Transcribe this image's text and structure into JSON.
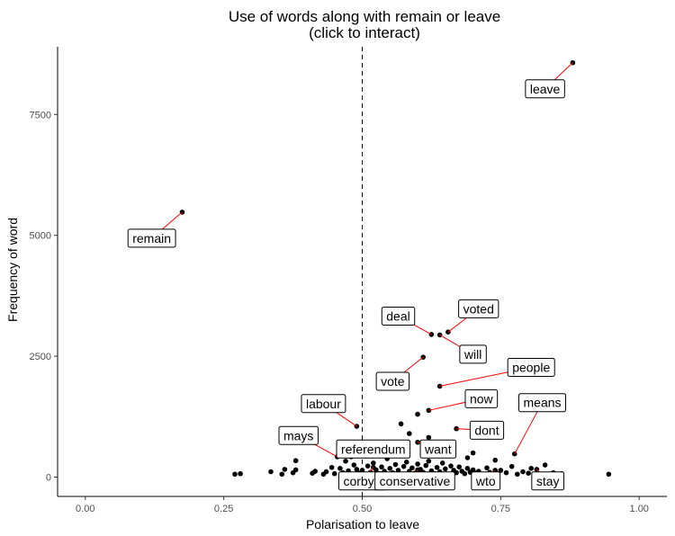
{
  "chart_data": {
    "type": "scatter",
    "title": "Use of words along with remain or leave",
    "subtitle": "(click to interact)",
    "xlabel": "Polarisation to leave",
    "ylabel": "Frequency of word",
    "xlim": [
      -0.05,
      1.05
    ],
    "ylim": [
      -400,
      8900
    ],
    "x_ticks": [
      {
        "value": 0.0,
        "label": "0.00"
      },
      {
        "value": 0.25,
        "label": "0.25"
      },
      {
        "value": 0.5,
        "label": "0.50"
      },
      {
        "value": 0.75,
        "label": "0.75"
      },
      {
        "value": 1.0,
        "label": "1.00"
      }
    ],
    "y_ticks": [
      {
        "value": 0,
        "label": "0"
      },
      {
        "value": 2500,
        "label": "2500"
      },
      {
        "value": 5000,
        "label": "5000"
      },
      {
        "value": 7500,
        "label": "7500"
      }
    ],
    "reference_line": {
      "axis": "x",
      "value": 0.5,
      "style": "dashed"
    },
    "grid": false,
    "point_color": "#000000",
    "connector_color": "#ff0000",
    "labeled_points": [
      {
        "word": "leave",
        "x": 0.88,
        "y": 8570,
        "label_x": 0.83,
        "label_y": 8030
      },
      {
        "word": "remain",
        "x": 0.175,
        "y": 5480,
        "label_x": 0.12,
        "label_y": 4940
      },
      {
        "word": "voted",
        "x": 0.655,
        "y": 3000,
        "label_x": 0.71,
        "label_y": 3480
      },
      {
        "word": "deal",
        "x": 0.625,
        "y": 2950,
        "label_x": 0.565,
        "label_y": 3330
      },
      {
        "word": "will",
        "x": 0.64,
        "y": 2940,
        "label_x": 0.7,
        "label_y": 2540
      },
      {
        "word": "people",
        "x": 0.64,
        "y": 1880,
        "label_x": 0.805,
        "label_y": 2270
      },
      {
        "word": "vote",
        "x": 0.61,
        "y": 2480,
        "label_x": 0.555,
        "label_y": 1980
      },
      {
        "word": "now",
        "x": 0.62,
        "y": 1380,
        "label_x": 0.715,
        "label_y": 1620
      },
      {
        "word": "labour",
        "x": 0.49,
        "y": 1050,
        "label_x": 0.43,
        "label_y": 1520
      },
      {
        "word": "means",
        "x": 0.775,
        "y": 480,
        "label_x": 0.825,
        "label_y": 1540
      },
      {
        "word": "dont",
        "x": 0.67,
        "y": 1000,
        "label_x": 0.725,
        "label_y": 970
      },
      {
        "word": "mays",
        "x": 0.455,
        "y": 420,
        "label_x": 0.385,
        "label_y": 860
      },
      {
        "word": "referendum",
        "x": 0.56,
        "y": 700,
        "label_x": 0.52,
        "label_y": 580
      },
      {
        "word": "want",
        "x": 0.6,
        "y": 720,
        "label_x": 0.637,
        "label_y": 580
      },
      {
        "word": "corbyn",
        "x": 0.52,
        "y": 200,
        "label_x": 0.5,
        "label_y": -80
      },
      {
        "word": "conservative",
        "x": 0.6,
        "y": 150,
        "label_x": 0.595,
        "label_y": -80
      },
      {
        "word": "wto",
        "x": 0.74,
        "y": 140,
        "label_x": 0.723,
        "label_y": -80
      },
      {
        "word": "stay",
        "x": 0.815,
        "y": 160,
        "label_x": 0.835,
        "label_y": -80
      }
    ],
    "points": [
      {
        "x": 0.27,
        "y": 60
      },
      {
        "x": 0.28,
        "y": 70
      },
      {
        "x": 0.335,
        "y": 110
      },
      {
        "x": 0.355,
        "y": 60
      },
      {
        "x": 0.36,
        "y": 160
      },
      {
        "x": 0.375,
        "y": 90
      },
      {
        "x": 0.38,
        "y": 340
      },
      {
        "x": 0.38,
        "y": 150
      },
      {
        "x": 0.41,
        "y": 80
      },
      {
        "x": 0.415,
        "y": 120
      },
      {
        "x": 0.43,
        "y": 60
      },
      {
        "x": 0.435,
        "y": 110
      },
      {
        "x": 0.445,
        "y": 200
      },
      {
        "x": 0.45,
        "y": 70
      },
      {
        "x": 0.46,
        "y": 180
      },
      {
        "x": 0.465,
        "y": 90
      },
      {
        "x": 0.47,
        "y": 330
      },
      {
        "x": 0.475,
        "y": 130
      },
      {
        "x": 0.48,
        "y": 60
      },
      {
        "x": 0.485,
        "y": 250
      },
      {
        "x": 0.49,
        "y": 160
      },
      {
        "x": 0.495,
        "y": 80
      },
      {
        "x": 0.5,
        "y": 140
      },
      {
        "x": 0.505,
        "y": 60
      },
      {
        "x": 0.51,
        "y": 230
      },
      {
        "x": 0.515,
        "y": 100
      },
      {
        "x": 0.52,
        "y": 290
      },
      {
        "x": 0.525,
        "y": 150
      },
      {
        "x": 0.53,
        "y": 70
      },
      {
        "x": 0.535,
        "y": 210
      },
      {
        "x": 0.54,
        "y": 120
      },
      {
        "x": 0.545,
        "y": 380
      },
      {
        "x": 0.55,
        "y": 180
      },
      {
        "x": 0.555,
        "y": 90
      },
      {
        "x": 0.56,
        "y": 260
      },
      {
        "x": 0.565,
        "y": 140
      },
      {
        "x": 0.57,
        "y": 60
      },
      {
        "x": 0.575,
        "y": 220
      },
      {
        "x": 0.58,
        "y": 310
      },
      {
        "x": 0.585,
        "y": 120
      },
      {
        "x": 0.59,
        "y": 190
      },
      {
        "x": 0.595,
        "y": 80
      },
      {
        "x": 0.6,
        "y": 270
      },
      {
        "x": 0.605,
        "y": 160
      },
      {
        "x": 0.61,
        "y": 100
      },
      {
        "x": 0.615,
        "y": 240
      },
      {
        "x": 0.62,
        "y": 330
      },
      {
        "x": 0.625,
        "y": 130
      },
      {
        "x": 0.63,
        "y": 70
      },
      {
        "x": 0.635,
        "y": 200
      },
      {
        "x": 0.64,
        "y": 110
      },
      {
        "x": 0.645,
        "y": 290
      },
      {
        "x": 0.65,
        "y": 170
      },
      {
        "x": 0.655,
        "y": 60
      },
      {
        "x": 0.66,
        "y": 230
      },
      {
        "x": 0.665,
        "y": 140
      },
      {
        "x": 0.67,
        "y": 90
      },
      {
        "x": 0.675,
        "y": 210
      },
      {
        "x": 0.68,
        "y": 120
      },
      {
        "x": 0.685,
        "y": 70
      },
      {
        "x": 0.69,
        "y": 180
      },
      {
        "x": 0.695,
        "y": 100
      },
      {
        "x": 0.7,
        "y": 150
      },
      {
        "x": 0.705,
        "y": 80
      },
      {
        "x": 0.71,
        "y": 120
      },
      {
        "x": 0.72,
        "y": 60
      },
      {
        "x": 0.725,
        "y": 190
      },
      {
        "x": 0.73,
        "y": 100
      },
      {
        "x": 0.74,
        "y": 350
      },
      {
        "x": 0.745,
        "y": 70
      },
      {
        "x": 0.75,
        "y": 140
      },
      {
        "x": 0.76,
        "y": 90
      },
      {
        "x": 0.77,
        "y": 220
      },
      {
        "x": 0.78,
        "y": 60
      },
      {
        "x": 0.79,
        "y": 110
      },
      {
        "x": 0.8,
        "y": 80
      },
      {
        "x": 0.805,
        "y": 180
      },
      {
        "x": 0.82,
        "y": 60
      },
      {
        "x": 0.83,
        "y": 250
      },
      {
        "x": 0.845,
        "y": 90
      },
      {
        "x": 0.86,
        "y": 70
      },
      {
        "x": 0.945,
        "y": 60
      },
      {
        "x": 0.57,
        "y": 1100
      },
      {
        "x": 0.585,
        "y": 900
      },
      {
        "x": 0.6,
        "y": 1300
      },
      {
        "x": 0.655,
        "y": 600
      },
      {
        "x": 0.7,
        "y": 500
      },
      {
        "x": 0.48,
        "y": 420
      },
      {
        "x": 0.515,
        "y": 560
      },
      {
        "x": 0.55,
        "y": 480
      },
      {
        "x": 0.62,
        "y": 820
      },
      {
        "x": 0.69,
        "y": 400
      }
    ]
  }
}
